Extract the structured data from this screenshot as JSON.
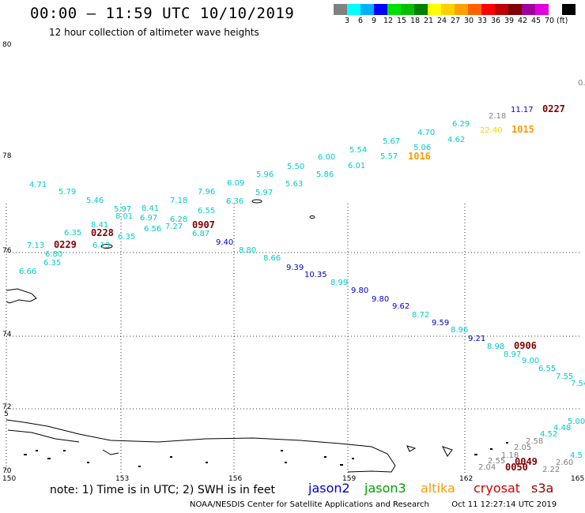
{
  "header": {
    "title": "00:00 – 11:59 UTC 10/10/2019",
    "subtitle": "12 hour collection of altimeter wave heights"
  },
  "legend": {
    "colors": [
      "#808080",
      "#00ffff",
      "#00b0ff",
      "#0000ff",
      "#00e000",
      "#00c000",
      "#008000",
      "#ffff00",
      "#ffd000",
      "#ffa000",
      "#ff6000",
      "#ff0000",
      "#c00000",
      "#800000",
      "#a000a0",
      "#e000e0",
      "#ffffff",
      "#000000"
    ],
    "ticks": [
      "3",
      "6",
      "9",
      "12",
      "15",
      "18",
      "21",
      "24",
      "27",
      "30",
      "33",
      "36",
      "39",
      "42",
      "45",
      "70",
      "(ft)"
    ]
  },
  "axes": {
    "lat_labels": [
      "80",
      "78",
      "76",
      "74",
      "72",
      "70"
    ],
    "lon_labels": [
      "150",
      "153",
      "156",
      "159",
      "162",
      "165"
    ],
    "lat_edge_label": "5"
  },
  "footer": {
    "note": "note:  1) Time is in UTC;  2) SWH is in feet",
    "missions": [
      {
        "name": "jason2",
        "color": "#0000cc"
      },
      {
        "name": "jason3",
        "color": "#00a000"
      },
      {
        "name": "altika",
        "color": "#ff9900"
      },
      {
        "name": "cryosat",
        "color": "#cc0000"
      },
      {
        "name": "s3a",
        "color": "#990000"
      }
    ],
    "credit": "NOAA/NESDIS Center for Satellite Applications and Research",
    "timestamp": "Oct 11 12:27:14 UTC 2019"
  },
  "wave_labels": [
    {
      "t": "0.",
      "c": "#808080"
    },
    {
      "t": "2.18",
      "c": "#808080"
    },
    {
      "t": "11.17",
      "c": "#0000cc"
    },
    {
      "t": "0227",
      "c": "#800000",
      "time": true
    },
    {
      "t": "6.29",
      "c": "#00cccc"
    },
    {
      "t": "22.40",
      "c": "#ffd000"
    },
    {
      "t": "1015",
      "c": "#ff9900",
      "time": true
    },
    {
      "t": "4.70",
      "c": "#00cccc"
    },
    {
      "t": "4.62",
      "c": "#00cccc"
    },
    {
      "t": "5.67",
      "c": "#00cccc"
    },
    {
      "t": "5.06",
      "c": "#00cccc"
    },
    {
      "t": "5.54",
      "c": "#00cccc"
    },
    {
      "t": "5.57",
      "c": "#00cccc"
    },
    {
      "t": "1016",
      "c": "#ff9900",
      "time": true
    },
    {
      "t": "6.00",
      "c": "#00cccc"
    },
    {
      "t": "6.01",
      "c": "#00cccc"
    },
    {
      "t": "5.50",
      "c": "#00cccc"
    },
    {
      "t": "5.86",
      "c": "#00cccc"
    },
    {
      "t": "5.96",
      "c": "#00cccc"
    },
    {
      "t": "5.63",
      "c": "#00cccc"
    },
    {
      "t": "6.09",
      "c": "#00cccc"
    },
    {
      "t": "5.97",
      "c": "#00cccc"
    },
    {
      "t": "6.36",
      "c": "#00cccc"
    },
    {
      "t": "7.96",
      "c": "#00cccc"
    },
    {
      "t": "6.55",
      "c": "#00cccc"
    },
    {
      "t": "7.18",
      "c": "#00cccc"
    },
    {
      "t": "6.28",
      "c": "#00cccc"
    },
    {
      "t": "0907",
      "c": "#800000",
      "time": true
    },
    {
      "t": "6.87",
      "c": "#00cccc"
    },
    {
      "t": "8.41",
      "c": "#00cccc"
    },
    {
      "t": "6.97",
      "c": "#00cccc"
    },
    {
      "t": "6.56",
      "c": "#00cccc"
    },
    {
      "t": "7.27",
      "c": "#00cccc"
    },
    {
      "t": "5.97",
      "c": "#00cccc"
    },
    {
      "t": "8.01",
      "c": "#00cccc"
    },
    {
      "t": "6.35",
      "c": "#00cccc"
    },
    {
      "t": "4.71",
      "c": "#00cccc"
    },
    {
      "t": "5.79",
      "c": "#00cccc"
    },
    {
      "t": "5.46",
      "c": "#00cccc"
    },
    {
      "t": "8.41",
      "c": "#00cccc"
    },
    {
      "t": "6.35",
      "c": "#00cccc"
    },
    {
      "t": "0228",
      "c": "#800000",
      "time": true
    },
    {
      "t": "6.13",
      "c": "#00cccc"
    },
    {
      "t": "7.13",
      "c": "#00cccc"
    },
    {
      "t": "0229",
      "c": "#800000",
      "time": true
    },
    {
      "t": "6.80",
      "c": "#00cccc"
    },
    {
      "t": "6.35",
      "c": "#00cccc"
    },
    {
      "t": "6.66",
      "c": "#00cccc"
    },
    {
      "t": "9.40",
      "c": "#0000cc"
    },
    {
      "t": "8.80",
      "c": "#00cccc"
    },
    {
      "t": "8.66",
      "c": "#00cccc"
    },
    {
      "t": "9.39",
      "c": "#0000cc"
    },
    {
      "t": "10.35",
      "c": "#0000cc"
    },
    {
      "t": "8.99",
      "c": "#00cccc"
    },
    {
      "t": "9.80",
      "c": "#0000cc"
    },
    {
      "t": "9.80",
      "c": "#0000cc"
    },
    {
      "t": "9.62",
      "c": "#0000cc"
    },
    {
      "t": "8.72",
      "c": "#00cccc"
    },
    {
      "t": "9.59",
      "c": "#0000cc"
    },
    {
      "t": "8.96",
      "c": "#00cccc"
    },
    {
      "t": "9.21",
      "c": "#0000cc"
    },
    {
      "t": "8.98",
      "c": "#00cccc"
    },
    {
      "t": "0906",
      "c": "#800000",
      "time": true
    },
    {
      "t": "8.97",
      "c": "#00cccc"
    },
    {
      "t": "9.00",
      "c": "#00cccc"
    },
    {
      "t": "6.55",
      "c": "#00cccc"
    },
    {
      "t": "7.55",
      "c": "#00cccc"
    },
    {
      "t": "7.54",
      "c": "#00cccc"
    },
    {
      "t": "5.00",
      "c": "#00cccc"
    },
    {
      "t": "4.48",
      "c": "#00cccc"
    },
    {
      "t": "4.52",
      "c": "#00cccc"
    },
    {
      "t": "2.58",
      "c": "#808080"
    },
    {
      "t": "2.05",
      "c": "#808080"
    },
    {
      "t": "1.18",
      "c": "#808080"
    },
    {
      "t": "2.55",
      "c": "#808080"
    },
    {
      "t": "0049",
      "c": "#800000",
      "time": true
    },
    {
      "t": "2.60",
      "c": "#808080"
    },
    {
      "t": "2.04",
      "c": "#808080"
    },
    {
      "t": "0050",
      "c": "#800000",
      "time": true
    },
    {
      "t": "2.22",
      "c": "#808080"
    },
    {
      "t": "4.5",
      "c": "#00cccc"
    }
  ]
}
